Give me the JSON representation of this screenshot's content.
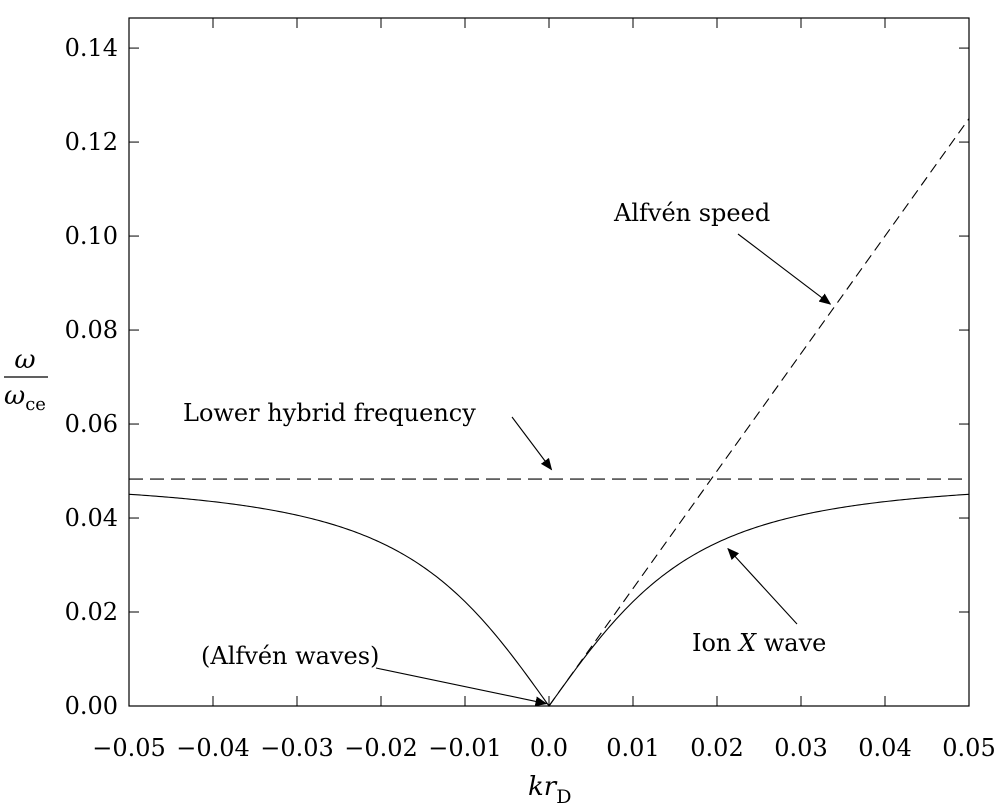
{
  "chart_data": {
    "type": "line",
    "title": "",
    "xlabel": {
      "main": "kr",
      "sub": "D"
    },
    "ylabel": {
      "numerator": "ω",
      "denominator": "ω",
      "denominator_sub": "ce"
    },
    "xlim": [
      -0.05,
      0.05
    ],
    "ylim": [
      0.0,
      0.145
    ],
    "x_ticks": [
      -0.05,
      -0.04,
      -0.03,
      -0.02,
      -0.01,
      0.0,
      0.01,
      0.02,
      0.03,
      0.04,
      0.05
    ],
    "x_tick_labels": [
      "−0.05",
      "−0.04",
      "−0.03",
      "−0.02",
      "−0.01",
      "0.0",
      "0.01",
      "0.02",
      "0.03",
      "0.04",
      "0.05"
    ],
    "y_ticks": [
      0.0,
      0.02,
      0.04,
      0.06,
      0.08,
      0.1,
      0.12,
      0.14
    ],
    "y_tick_labels": [
      "0.00",
      "0.02",
      "0.04",
      "0.06",
      "0.08",
      "0.10",
      "0.12",
      "0.14"
    ],
    "grid": false,
    "series": [
      {
        "name": "Ion X wave",
        "style": "solid",
        "asymptote": 0.0483,
        "alfven_slope": 2.5,
        "x_range": [
          -0.05,
          0.05
        ]
      },
      {
        "name": "Lower hybrid frequency",
        "style": "dashed",
        "x": [
          -0.05,
          0.05
        ],
        "y": [
          0.0483,
          0.0483
        ]
      },
      {
        "name": "Alfvén speed",
        "style": "dashed",
        "x": [
          0.0,
          0.05
        ],
        "y": [
          0.0,
          0.125
        ]
      }
    ],
    "annotations": [
      {
        "text": "Alfvén speed",
        "arrow_to": [
          0.0335,
          0.0855
        ]
      },
      {
        "text": "Lower hybrid frequency",
        "arrow_to": [
          0.0003,
          0.0503
        ]
      },
      {
        "text": "(Alfvén waves)",
        "arrow_to": [
          -0.0003,
          0.0005
        ]
      },
      {
        "text_prefix": "Ion ",
        "text_italic": "X",
        "text_suffix": " wave",
        "arrow_to": [
          0.0213,
          0.0335
        ]
      }
    ]
  }
}
